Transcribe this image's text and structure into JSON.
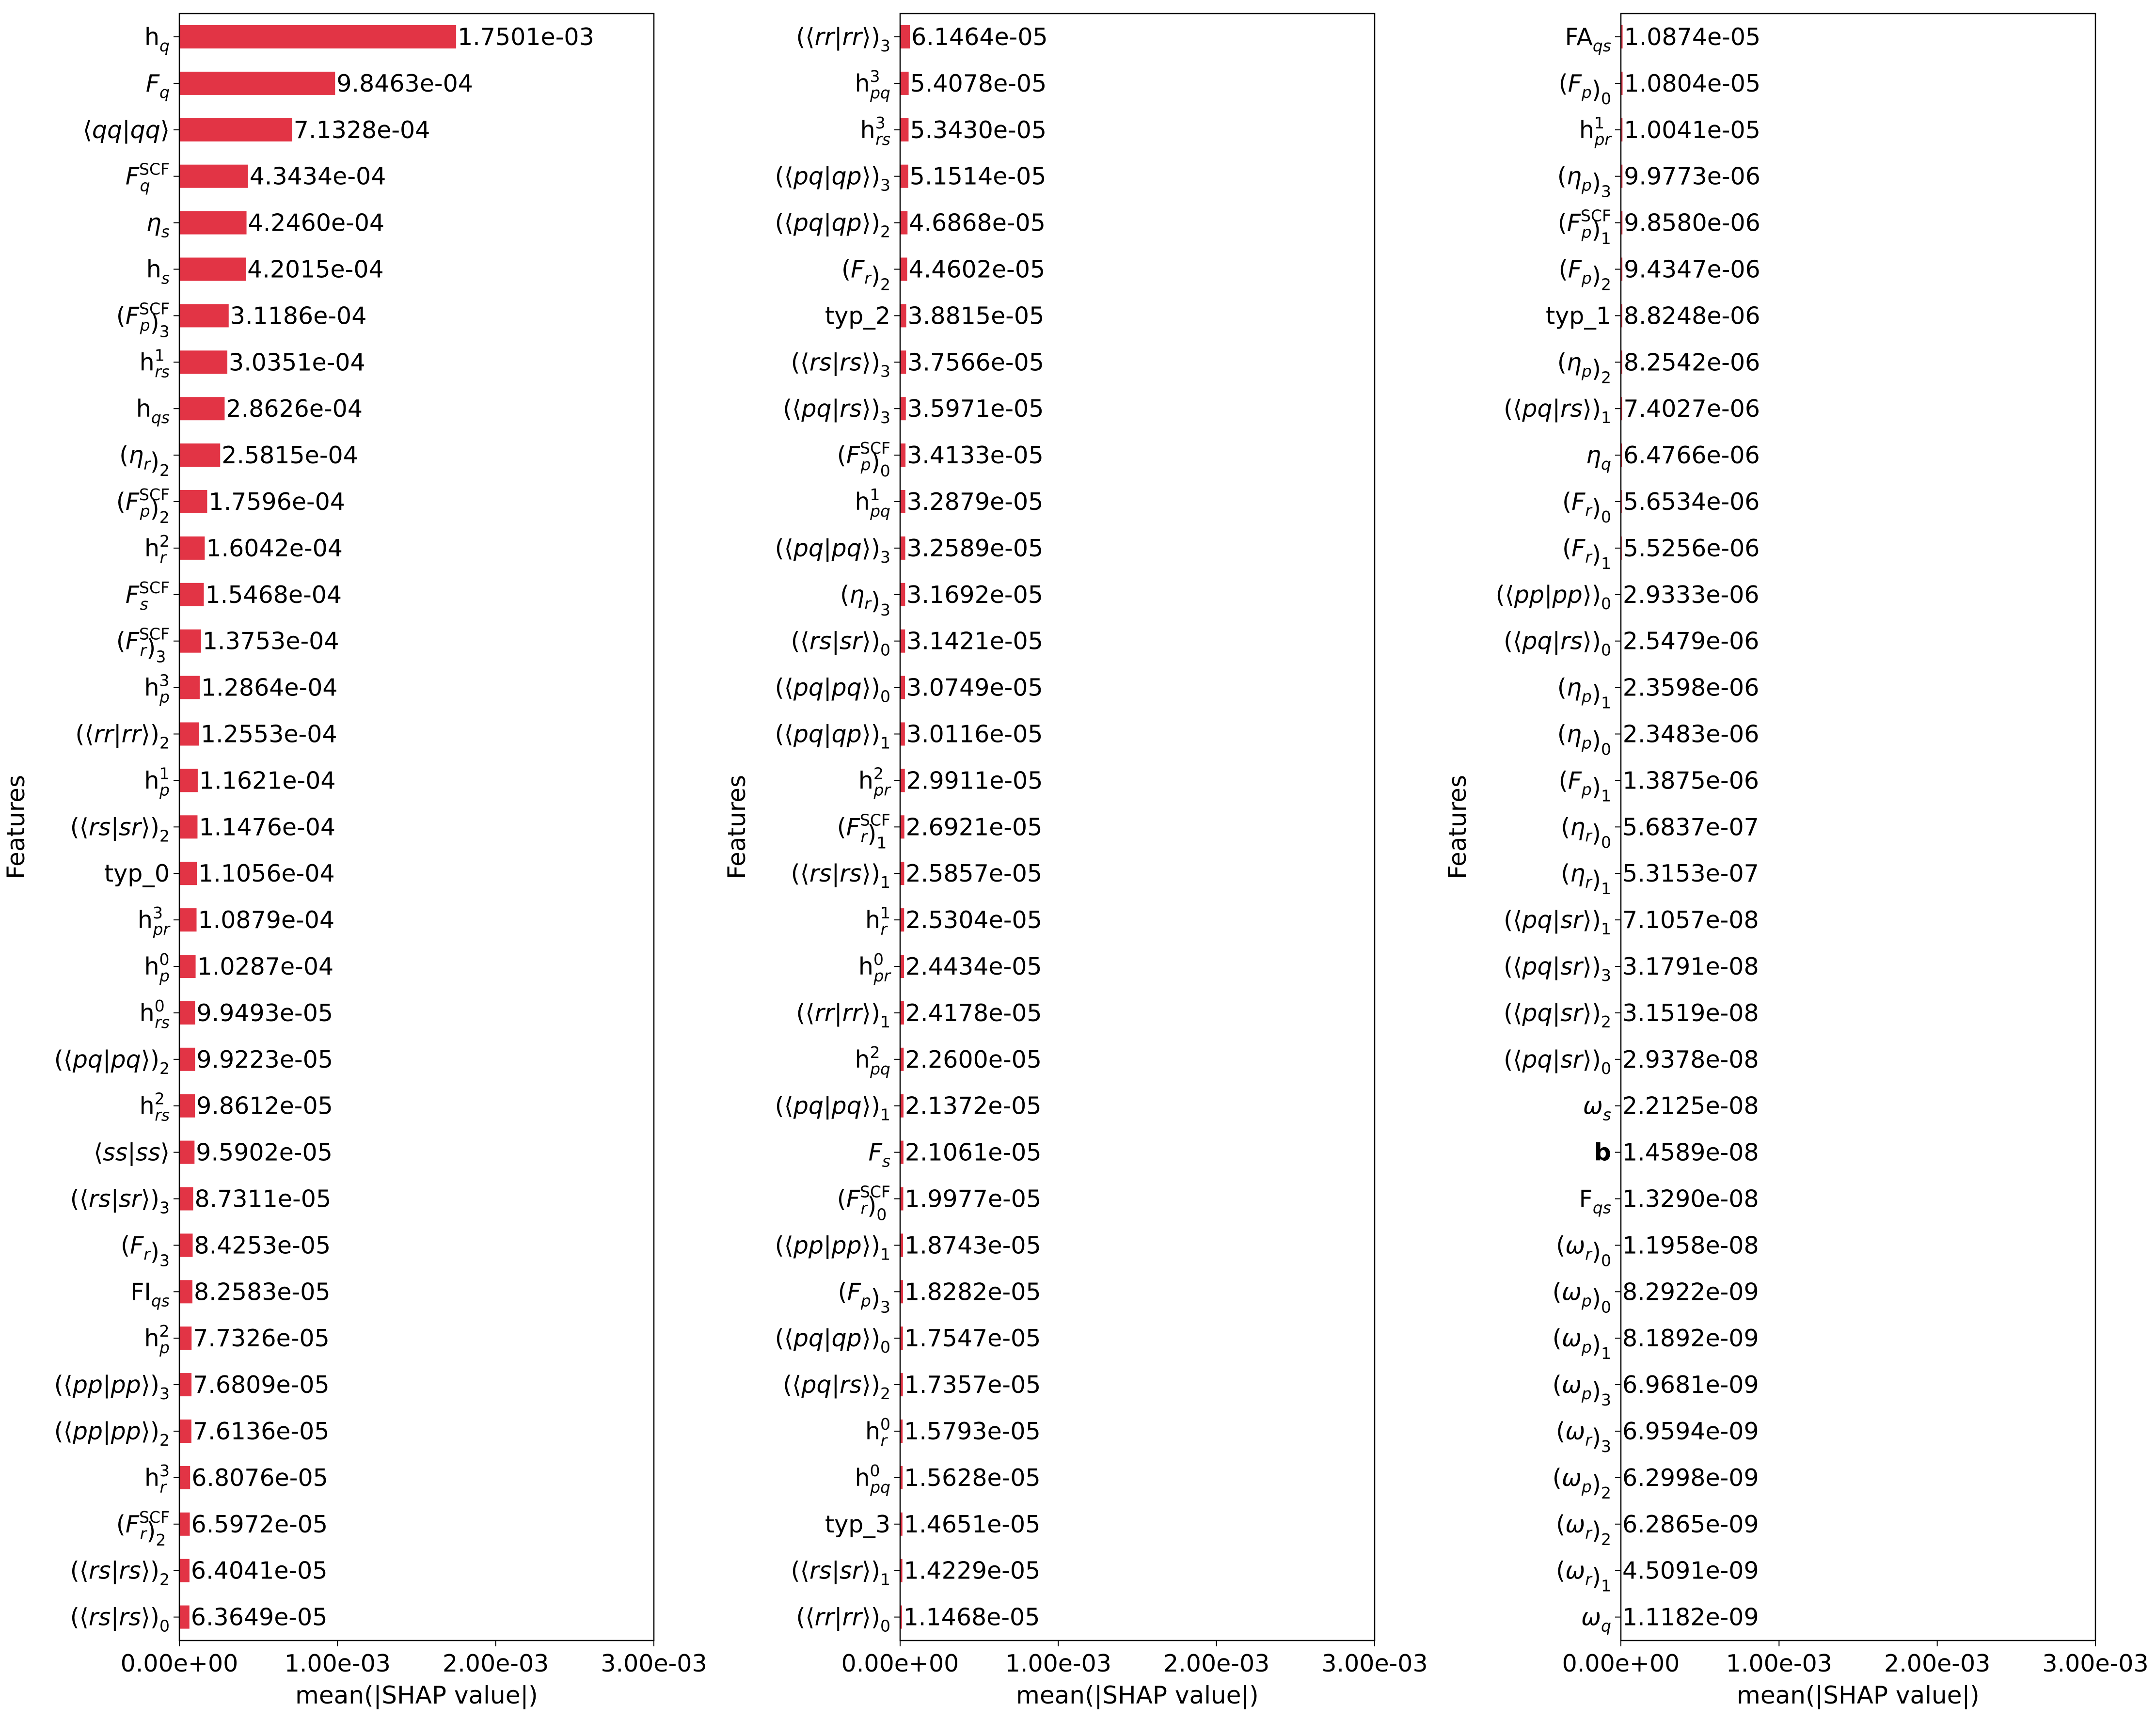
{
  "chart_data": [
    {
      "type": "bar",
      "orientation": "horizontal",
      "xlabel": "mean(|SHAP value|)",
      "ylabel": "Features",
      "xlim": [
        0,
        0.003
      ],
      "xticks": [
        0,
        0.001,
        0.002,
        0.003
      ],
      "xtick_labels": [
        "0.00e+00",
        "1.00e-03",
        "2.00e-03",
        "3.00e-03"
      ],
      "grid": false,
      "bar_color": "#e23445",
      "categories": [
        "h_{q}",
        "*F_{q}",
        "⟨*qq|*qq⟩",
        "*F^{SCF}_{q}",
        "*η_{s}",
        "h_{s}",
        "(*F^{SCF}_{p})_{3}",
        "h^{1}_{rs}",
        "h_{qs}",
        "(*η_{r})_{2}",
        "(*F^{SCF}_{p})_{2}",
        "h^{2}_{r}",
        "*F^{SCF}_{s}",
        "(*F^{SCF}_{r})_{3}",
        "h^{3}_{p}",
        "(⟨*rr|*rr⟩)_{2}",
        "h^{1}_{p}",
        "(⟨*rs|*sr⟩)_{2}",
        "typ_0",
        "h^{3}_{pr}",
        "h^{0}_{p}",
        "h^{0}_{rs}",
        "(⟨*pq|*pq⟩)_{2}",
        "h^{2}_{rs}",
        "⟨*ss|*ss⟩",
        "(⟨*rs|*sr⟩)_{3}",
        "(*F_{r})_{3}",
        "FI_{qs}",
        "h^{2}_{p}",
        "(⟨*pp|*pp⟩)_{3}",
        "(⟨*pp|*pp⟩)_{2}",
        "h^{3}_{r}",
        "(*F^{SCF}_{r})_{2}",
        "(⟨*rs|*rs⟩)_{2}",
        "(⟨*rs|*rs⟩)_{0}"
      ],
      "values": [
        0.0017501,
        0.00098463,
        0.00071328,
        0.00043434,
        0.0004246,
        0.00042015,
        0.00031186,
        0.00030351,
        0.00028626,
        0.00025815,
        0.00017596,
        0.00016042,
        0.00015468,
        0.00013753,
        0.00012864,
        0.00012553,
        0.00011621,
        0.00011476,
        0.00011056,
        0.00010879,
        0.00010287,
        9.9493e-05,
        9.9223e-05,
        9.8612e-05,
        9.5902e-05,
        8.7311e-05,
        8.4253e-05,
        8.2583e-05,
        7.7326e-05,
        7.6809e-05,
        7.6136e-05,
        6.8076e-05,
        6.5972e-05,
        6.4041e-05,
        6.3649e-05
      ],
      "value_labels": [
        "1.7501e-03",
        "9.8463e-04",
        "7.1328e-04",
        "4.3434e-04",
        "4.2460e-04",
        "4.2015e-04",
        "3.1186e-04",
        "3.0351e-04",
        "2.8626e-04",
        "2.5815e-04",
        "1.7596e-04",
        "1.6042e-04",
        "1.5468e-04",
        "1.3753e-04",
        "1.2864e-04",
        "1.2553e-04",
        "1.1621e-04",
        "1.1476e-04",
        "1.1056e-04",
        "1.0879e-04",
        "1.0287e-04",
        "9.9493e-05",
        "9.9223e-05",
        "9.8612e-05",
        "9.5902e-05",
        "8.7311e-05",
        "8.4253e-05",
        "8.2583e-05",
        "7.7326e-05",
        "7.6809e-05",
        "7.6136e-05",
        "6.8076e-05",
        "6.5972e-05",
        "6.4041e-05",
        "6.3649e-05"
      ]
    },
    {
      "type": "bar",
      "orientation": "horizontal",
      "xlabel": "mean(|SHAP value|)",
      "ylabel": "Features",
      "xlim": [
        0,
        0.003
      ],
      "xticks": [
        0,
        0.001,
        0.002,
        0.003
      ],
      "xtick_labels": [
        "0.00e+00",
        "1.00e-03",
        "2.00e-03",
        "3.00e-03"
      ],
      "grid": false,
      "bar_color": "#e23445",
      "categories": [
        "(⟨*rr|*rr⟩)_{3}",
        "h^{3}_{pq}",
        "h^{3}_{rs}",
        "(⟨*pq|*qp⟩)_{3}",
        "(⟨*pq|*qp⟩)_{2}",
        "(*F_{r})_{2}",
        "typ_2",
        "(⟨*rs|*rs⟩)_{3}",
        "(⟨*pq|*rs⟩)_{3}",
        "(*F^{SCF}_{p})_{0}",
        "h^{1}_{pq}",
        "(⟨*pq|*pq⟩)_{3}",
        "(*η_{r})_{3}",
        "(⟨*rs|*sr⟩)_{0}",
        "(⟨*pq|*pq⟩)_{0}",
        "(⟨*pq|*qp⟩)_{1}",
        "h^{2}_{pr}",
        "(*F^{SCF}_{r})_{1}",
        "(⟨*rs|*rs⟩)_{1}",
        "h^{1}_{r}",
        "h^{0}_{pr}",
        "(⟨*rr|*rr⟩)_{1}",
        "h^{2}_{pq}",
        "(⟨*pq|*pq⟩)_{1}",
        "*F_{s}",
        "(*F^{SCF}_{r})_{0}",
        "(⟨*pp|*pp⟩)_{1}",
        "(*F_{p})_{3}",
        "(⟨*pq|*qp⟩)_{0}",
        "(⟨*pq|*rs⟩)_{2}",
        "h^{0}_{r}",
        "h^{0}_{pq}",
        "typ_3",
        "(⟨*rs|*sr⟩)_{1}",
        "(⟨*rr|*rr⟩)_{0}"
      ],
      "values": [
        6.1464e-05,
        5.4078e-05,
        5.343e-05,
        5.1514e-05,
        4.6868e-05,
        4.4602e-05,
        3.8815e-05,
        3.7566e-05,
        3.5971e-05,
        3.4133e-05,
        3.2879e-05,
        3.2589e-05,
        3.1692e-05,
        3.1421e-05,
        3.0749e-05,
        3.0116e-05,
        2.9911e-05,
        2.6921e-05,
        2.5857e-05,
        2.5304e-05,
        2.4434e-05,
        2.4178e-05,
        2.26e-05,
        2.1372e-05,
        2.1061e-05,
        1.9977e-05,
        1.8743e-05,
        1.8282e-05,
        1.7547e-05,
        1.7357e-05,
        1.5793e-05,
        1.5628e-05,
        1.4651e-05,
        1.4229e-05,
        1.1468e-05
      ],
      "value_labels": [
        "6.1464e-05",
        "5.4078e-05",
        "5.3430e-05",
        "5.1514e-05",
        "4.6868e-05",
        "4.4602e-05",
        "3.8815e-05",
        "3.7566e-05",
        "3.5971e-05",
        "3.4133e-05",
        "3.2879e-05",
        "3.2589e-05",
        "3.1692e-05",
        "3.1421e-05",
        "3.0749e-05",
        "3.0116e-05",
        "2.9911e-05",
        "2.6921e-05",
        "2.5857e-05",
        "2.5304e-05",
        "2.4434e-05",
        "2.4178e-05",
        "2.2600e-05",
        "2.1372e-05",
        "2.1061e-05",
        "1.9977e-05",
        "1.8743e-05",
        "1.8282e-05",
        "1.7547e-05",
        "1.7357e-05",
        "1.5793e-05",
        "1.5628e-05",
        "1.4651e-05",
        "1.4229e-05",
        "1.1468e-05"
      ]
    },
    {
      "type": "bar",
      "orientation": "horizontal",
      "xlabel": "mean(|SHAP value|)",
      "ylabel": "Features",
      "xlim": [
        0,
        0.003
      ],
      "xticks": [
        0,
        0.001,
        0.002,
        0.003
      ],
      "xtick_labels": [
        "0.00e+00",
        "1.00e-03",
        "2.00e-03",
        "3.00e-03"
      ],
      "grid": false,
      "bar_color": "#e23445",
      "categories": [
        "FA_{qs}",
        "(*F_{p})_{0}",
        "h^{1}_{pr}",
        "(*η_{p})_{3}",
        "(*F^{SCF}_{p})_{1}",
        "(*F_{p})_{2}",
        "typ_1",
        "(*η_{p})_{2}",
        "(⟨*pq|*rs⟩)_{1}",
        "*η_{q}",
        "(*F_{r})_{0}",
        "(*F_{r})_{1}",
        "(⟨*pp|*pp⟩)_{0}",
        "(⟨*pq|*rs⟩)_{0}",
        "(*η_{p})_{1}",
        "(*η_{p})_{0}",
        "(*F_{p})_{1}",
        "(*η_{r})_{0}",
        "(*η_{r})_{1}",
        "(⟨*pq|*sr⟩)_{1}",
        "(⟨*pq|*sr⟩)_{3}",
        "(⟨*pq|*sr⟩)_{2}",
        "(⟨*pq|*sr⟩)_{0}",
        "*ω_{s}",
        "#b",
        "F_{qs}",
        "(*ω_{r})_{0}",
        "(*ω_{p})_{0}",
        "(*ω_{p})_{1}",
        "(*ω_{p})_{3}",
        "(*ω_{r})_{3}",
        "(*ω_{p})_{2}",
        "(*ω_{r})_{2}",
        "(*ω_{r})_{1}",
        "*ω_{q}"
      ],
      "values": [
        1.0874e-05,
        1.0804e-05,
        1.0041e-05,
        9.9773e-06,
        9.858e-06,
        9.4347e-06,
        8.8248e-06,
        8.2542e-06,
        7.4027e-06,
        6.4766e-06,
        5.6534e-06,
        5.5256e-06,
        2.9333e-06,
        2.5479e-06,
        2.3598e-06,
        2.3483e-06,
        1.3875e-06,
        5.6837e-07,
        5.3153e-07,
        7.1057e-08,
        3.1791e-08,
        3.1519e-08,
        2.9378e-08,
        2.2125e-08,
        1.4589e-08,
        1.329e-08,
        1.1958e-08,
        8.2922e-09,
        8.1892e-09,
        6.9681e-09,
        6.9594e-09,
        6.2998e-09,
        6.2865e-09,
        4.5091e-09,
        1.1182e-09
      ],
      "value_labels": [
        "1.0874e-05",
        "1.0804e-05",
        "1.0041e-05",
        "9.9773e-06",
        "9.8580e-06",
        "9.4347e-06",
        "8.8248e-06",
        "8.2542e-06",
        "7.4027e-06",
        "6.4766e-06",
        "5.6534e-06",
        "5.5256e-06",
        "2.9333e-06",
        "2.5479e-06",
        "2.3598e-06",
        "2.3483e-06",
        "1.3875e-06",
        "5.6837e-07",
        "5.3153e-07",
        "7.1057e-08",
        "3.1791e-08",
        "3.1519e-08",
        "2.9378e-08",
        "2.2125e-08",
        "1.4589e-08",
        "1.3290e-08",
        "1.1958e-08",
        "8.2922e-09",
        "8.1892e-09",
        "6.9681e-09",
        "6.9594e-09",
        "6.2998e-09",
        "6.2865e-09",
        "4.5091e-09",
        "1.1182e-09"
      ]
    }
  ]
}
